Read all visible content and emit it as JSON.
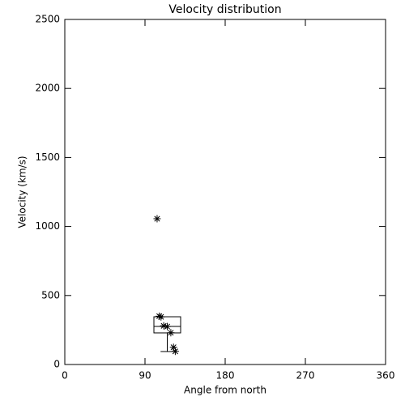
{
  "chart_data": {
    "type": "scatter",
    "title": "Velocity distribution",
    "x_label": "Angle from north",
    "y_label": "Velocity (km/s)",
    "x": [
      103.6,
      106,
      108,
      111,
      115,
      119,
      122,
      124
    ],
    "values": [
      1056,
      350,
      345,
      280,
      275,
      230,
      125,
      95
    ],
    "color": "#000000",
    "box": {
      "xrange": [
        100,
        130
      ],
      "low": 94,
      "q1": 229,
      "median": 276,
      "q3": 346
    },
    "xlim": [
      0,
      360
    ],
    "xticks": [
      0,
      90,
      180,
      270,
      360
    ],
    "ylim": [
      0,
      2500
    ],
    "yticks": [
      0,
      500,
      1000,
      1500,
      2000,
      2500
    ]
  }
}
